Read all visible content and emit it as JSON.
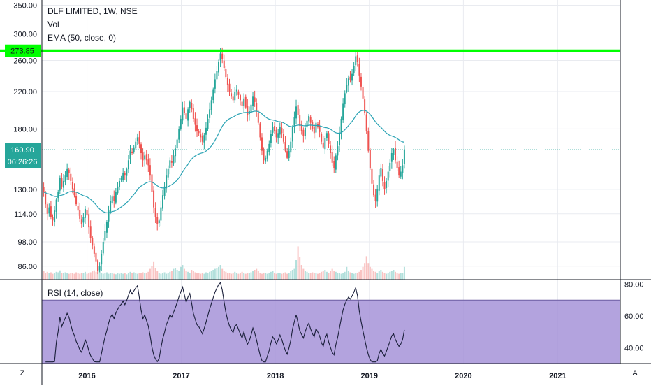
{
  "chart_header": {
    "symbol_line": "DLF LIMITED, 1W, NSE",
    "vol_label": "Vol",
    "ema_label": "EMA (50, close, 0)",
    "rsi_label": "RSI (14, close)"
  },
  "corner_buttons": {
    "left": "Z",
    "right": "A"
  },
  "price_badges": {
    "resistance": "273.85",
    "last_price": "160.90",
    "countdown": "06:26:26"
  },
  "colors": {
    "up": "#26a69a",
    "down": "#ef5350",
    "ema": "#2aa3b4",
    "resistance_line": "#00ff00",
    "rsi_line": "#1a1f3a",
    "rsi_band": "#a693d8",
    "rsi_band_border": "#6a5aa0",
    "grid": "#e9ebf0",
    "axis": "#131722"
  },
  "chart_data": [
    {
      "type": "candlestick",
      "title": "DLF LIMITED, 1W, NSE",
      "ylim": [
        80,
        360
      ],
      "y_scale": "log",
      "grid": true,
      "price_ticks": [
        "350.00",
        "300.00",
        "260.00",
        "220.00",
        "180.00",
        "130.00",
        "114.00",
        "98.00",
        "86.00"
      ],
      "price_tick_values": [
        350,
        300,
        260,
        220,
        180,
        130,
        114,
        98,
        86
      ],
      "x_ticks": [
        "2016",
        "2017",
        "2018",
        "2019",
        "2020",
        "2021"
      ],
      "x_tick_dates": [
        "2016-01-01",
        "2017-01-01",
        "2018-01-01",
        "2019-01-01",
        "2020-01-01",
        "2021-01-01"
      ],
      "xlim": [
        "2015-07-10",
        "2021-09-01"
      ],
      "first_week": "2015-07-17",
      "closes": [
        128,
        120,
        114,
        118,
        112,
        110,
        116,
        123,
        128,
        138,
        132,
        136,
        140,
        145,
        142,
        136,
        130,
        126,
        120,
        116,
        111,
        108,
        112,
        117,
        113,
        106,
        100,
        96,
        92,
        88,
        84,
        86,
        92,
        98,
        104,
        109,
        116,
        122,
        125,
        122,
        128,
        132,
        136,
        138,
        142,
        140,
        145,
        152,
        160,
        158,
        163,
        168,
        172,
        166,
        158,
        152,
        156,
        152,
        148,
        140,
        128,
        118,
        112,
        108,
        110,
        118,
        126,
        132,
        140,
        145,
        152,
        150,
        156,
        162,
        170,
        180,
        190,
        202,
        196,
        190,
        200,
        208,
        200,
        190,
        184,
        178,
        176,
        172,
        168,
        174,
        181,
        190,
        200,
        210,
        222,
        235,
        246,
        258,
        270,
        262,
        250,
        238,
        228,
        220,
        214,
        210,
        220,
        222,
        216,
        210,
        204,
        212,
        202,
        194,
        198,
        205,
        214,
        208,
        198,
        186,
        172,
        160,
        152,
        154,
        160,
        166,
        175,
        182,
        178,
        172,
        176,
        182,
        176,
        168,
        160,
        154,
        160,
        168,
        182,
        192,
        203,
        194,
        183,
        178,
        173,
        181,
        188,
        193,
        186,
        180,
        176,
        186,
        182,
        177,
        168,
        163,
        171,
        176,
        166,
        158,
        150,
        146,
        156,
        164,
        176,
        190,
        206,
        218,
        228,
        236,
        234,
        242,
        252,
        266,
        258,
        240,
        226,
        212,
        196,
        178,
        160,
        146,
        134,
        126,
        122,
        130,
        140,
        146,
        136,
        130,
        136,
        143,
        150,
        158,
        161,
        152,
        146,
        140,
        143,
        148,
        160.9
      ],
      "volume_max": 100,
      "volumes": [
        18,
        14,
        16,
        13,
        15,
        12,
        14,
        16,
        15,
        19,
        14,
        13,
        15,
        14,
        12,
        13,
        14,
        12,
        15,
        13,
        12,
        14,
        13,
        16,
        12,
        14,
        15,
        17,
        19,
        16,
        22,
        18,
        14,
        12,
        13,
        15,
        12,
        14,
        13,
        12,
        11,
        13,
        12,
        14,
        12,
        13,
        11,
        14,
        16,
        13,
        15,
        14,
        12,
        13,
        14,
        15,
        13,
        14,
        16,
        22,
        28,
        36,
        24,
        18,
        14,
        12,
        13,
        15,
        12,
        14,
        16,
        18,
        22,
        24,
        20,
        18,
        26,
        30,
        22,
        18,
        16,
        14,
        20,
        18,
        15,
        14,
        13,
        12,
        14,
        12,
        15,
        14,
        16,
        18,
        20,
        22,
        24,
        26,
        30,
        22,
        18,
        16,
        14,
        13,
        12,
        14,
        16,
        13,
        12,
        14,
        16,
        13,
        12,
        14,
        13,
        15,
        18,
        20,
        22,
        18,
        14,
        12,
        13,
        14,
        12,
        13,
        16,
        18,
        14,
        12,
        13,
        14,
        12,
        13,
        15,
        12,
        14,
        18,
        20,
        22,
        40,
        68,
        46,
        30,
        22,
        18,
        16,
        14,
        13,
        15,
        14,
        13,
        12,
        14,
        16,
        18,
        20,
        16,
        14,
        18,
        22,
        18,
        16,
        14,
        13,
        12,
        14,
        16,
        26,
        18,
        15,
        14,
        12,
        13,
        14,
        16,
        20,
        26,
        34,
        48,
        34,
        26,
        22,
        18,
        16,
        14,
        18,
        20,
        16,
        14,
        12,
        14,
        16,
        18,
        20,
        16,
        14,
        12,
        13,
        14,
        26
      ]
    },
    {
      "type": "line",
      "title": "RSI (14, close)",
      "ylim": [
        30,
        82
      ],
      "band": [
        30,
        70
      ],
      "rsi_ticks": [
        "80.00",
        "60.00",
        "40.00"
      ],
      "rsi_tick_values": [
        80,
        60,
        40
      ]
    }
  ]
}
